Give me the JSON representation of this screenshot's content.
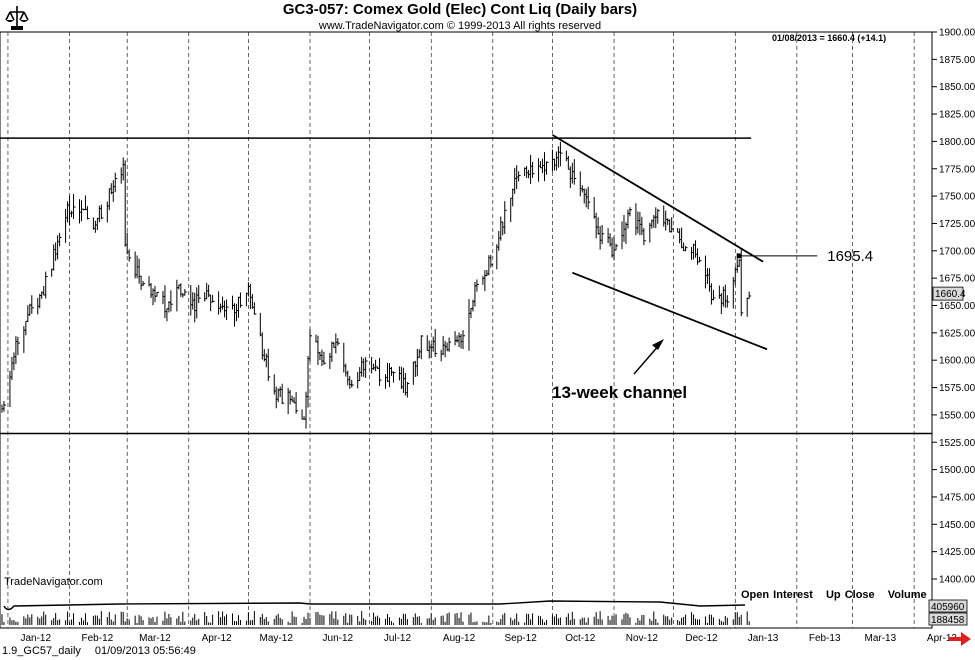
{
  "header": {
    "title": "GC3-057:  Comex Gold (Elec) Cont Liq  (Daily bars)",
    "subtitle": "www.TradeNavigator.com © 1999-2013 All rights reserved",
    "last_quote": "01/08/2013 = 1660.4 (+14.1)"
  },
  "watermark": "TradeNavigator.com",
  "indicator_legend": [
    "Open Interest",
    "Up Close",
    "Volume"
  ],
  "footer": {
    "file": "1.9_GC57_daily",
    "timestamp": "01/09/2013 05:56:49"
  },
  "colors": {
    "bars": "#000000",
    "grid": "#000000",
    "last_price_label_bg": "#d9d9d9",
    "scroll_arrow": "#e02020"
  },
  "icons": {
    "logo": "trade-navigator-logo-icon",
    "scroll": "scroll-right-arrow-icon"
  },
  "chart_data": {
    "type": "ohlc",
    "frequency": "daily",
    "x_range": [
      "2011-12-28",
      "2013-04-10"
    ],
    "y_range": [
      1400,
      1900
    ],
    "y_ticks": [
      1400,
      1425,
      1450,
      1475,
      1500,
      1525,
      1550,
      1575,
      1600,
      1625,
      1650,
      1675,
      1700,
      1725,
      1750,
      1775,
      1800,
      1825,
      1850,
      1875,
      1900
    ],
    "x_ticks": [
      {
        "label": "Jan-12",
        "date": "2012-01-15"
      },
      {
        "label": "Feb-12",
        "date": "2012-02-15"
      },
      {
        "label": "Mar-12",
        "date": "2012-03-15"
      },
      {
        "label": "Apr-12",
        "date": "2012-04-15"
      },
      {
        "label": "May-12",
        "date": "2012-05-15"
      },
      {
        "label": "Jun-12",
        "date": "2012-06-15"
      },
      {
        "label": "Jul-12",
        "date": "2012-07-15"
      },
      {
        "label": "Aug-12",
        "date": "2012-08-15"
      },
      {
        "label": "Sep-12",
        "date": "2012-09-15"
      },
      {
        "label": "Oct-12",
        "date": "2012-10-15"
      },
      {
        "label": "Nov-12",
        "date": "2012-11-15"
      },
      {
        "label": "Dec-12",
        "date": "2012-12-15"
      },
      {
        "label": "Jan-13",
        "date": "2013-01-15"
      },
      {
        "label": "Feb-13",
        "date": "2013-02-15"
      },
      {
        "label": "Mar-13",
        "date": "2013-03-15"
      },
      {
        "label": "Apr-13",
        "date": "2013-04-15"
      }
    ],
    "grid_lines_dates": [
      "2012-01-01",
      "2012-02-01",
      "2012-03-01",
      "2012-04-01",
      "2012-05-01",
      "2012-06-01",
      "2012-07-01",
      "2012-08-01",
      "2012-09-01",
      "2012-10-01",
      "2012-11-01",
      "2012-12-01",
      "2013-01-01",
      "2013-02-01",
      "2013-03-01",
      "2013-04-01"
    ],
    "grid": "vertical dashed",
    "price_path": [
      [
        "2011-12-29",
        1555
      ],
      [
        "2012-01-03",
        1600
      ],
      [
        "2012-01-10",
        1640
      ],
      [
        "2012-01-18",
        1660
      ],
      [
        "2012-01-25",
        1700
      ],
      [
        "2012-01-31",
        1735
      ],
      [
        "2012-02-07",
        1740
      ],
      [
        "2012-02-14",
        1725
      ],
      [
        "2012-02-21",
        1750
      ],
      [
        "2012-02-28",
        1780
      ],
      [
        "2012-02-29",
        1700
      ],
      [
        "2012-03-06",
        1680
      ],
      [
        "2012-03-13",
        1660
      ],
      [
        "2012-03-20",
        1650
      ],
      [
        "2012-03-27",
        1665
      ],
      [
        "2012-04-03",
        1650
      ],
      [
        "2012-04-10",
        1660
      ],
      [
        "2012-04-17",
        1650
      ],
      [
        "2012-04-24",
        1645
      ],
      [
        "2012-05-01",
        1665
      ],
      [
        "2012-05-08",
        1610
      ],
      [
        "2012-05-15",
        1565
      ],
      [
        "2012-05-21",
        1570
      ],
      [
        "2012-05-29",
        1550
      ],
      [
        "2012-06-01",
        1620
      ],
      [
        "2012-06-08",
        1600
      ],
      [
        "2012-06-15",
        1620
      ],
      [
        "2012-06-22",
        1575
      ],
      [
        "2012-06-29",
        1600
      ],
      [
        "2012-07-06",
        1585
      ],
      [
        "2012-07-13",
        1590
      ],
      [
        "2012-07-20",
        1575
      ],
      [
        "2012-07-27",
        1620
      ],
      [
        "2012-08-03",
        1610
      ],
      [
        "2012-08-10",
        1615
      ],
      [
        "2012-08-17",
        1620
      ],
      [
        "2012-08-24",
        1670
      ],
      [
        "2012-08-31",
        1690
      ],
      [
        "2012-09-07",
        1735
      ],
      [
        "2012-09-14",
        1770
      ],
      [
        "2012-09-21",
        1775
      ],
      [
        "2012-09-28",
        1775
      ],
      [
        "2012-10-05",
        1790
      ],
      [
        "2012-10-12",
        1765
      ],
      [
        "2012-10-19",
        1740
      ],
      [
        "2012-10-26",
        1710
      ],
      [
        "2012-11-02",
        1700
      ],
      [
        "2012-11-09",
        1735
      ],
      [
        "2012-11-16",
        1715
      ],
      [
        "2012-11-23",
        1740
      ],
      [
        "2012-11-30",
        1715
      ],
      [
        "2012-12-07",
        1705
      ],
      [
        "2012-12-14",
        1695
      ],
      [
        "2012-12-21",
        1655
      ],
      [
        "2012-12-28",
        1660
      ],
      [
        "2013-01-03",
        1690
      ],
      [
        "2013-01-04",
        1650
      ],
      [
        "2013-01-08",
        1660
      ]
    ],
    "open_interest": {
      "last": 405960
    },
    "volume": {
      "last": 188458
    },
    "horizontal_lines": [
      {
        "name": "resistance",
        "value": 1803,
        "from": "2011-12-28",
        "to": "2013-01-09"
      },
      {
        "name": "support",
        "value": 1533,
        "from": "2011-12-28",
        "to": "2013-04-10"
      }
    ],
    "trendlines": [
      {
        "name": "upper-channel",
        "from": [
          "2012-10-01",
          1806
        ],
        "to": [
          "2013-01-15",
          1690
        ]
      },
      {
        "name": "lower-channel",
        "from": [
          "2012-10-11",
          1680
        ],
        "to": [
          "2013-01-17",
          1610
        ]
      }
    ],
    "annotations": [
      {
        "text": "1695.4",
        "value": 1695.4,
        "date": "2013-01-03"
      },
      {
        "text": "13-week channel"
      }
    ],
    "last_price_label": "1660.4",
    "volume_panel": {
      "oi_label": "405960",
      "volume_label": "188458"
    }
  }
}
